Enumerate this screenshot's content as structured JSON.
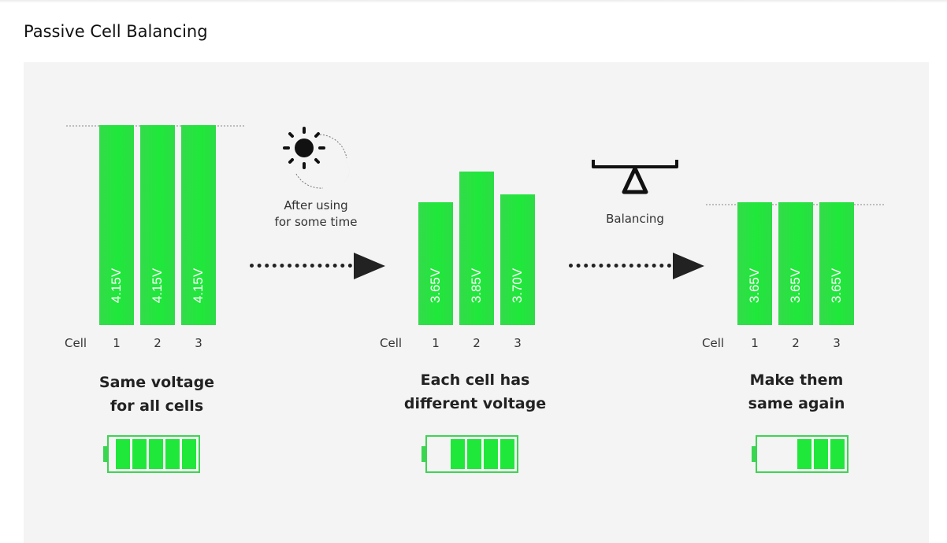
{
  "page": {
    "title": "Passive Cell Balancing"
  },
  "diagram": {
    "cell_axis_label": "Cell",
    "stages": [
      {
        "cells": [
          {
            "number": "1",
            "voltage": "4.15V",
            "value": 4.15
          },
          {
            "number": "2",
            "voltage": "4.15V",
            "value": 4.15
          },
          {
            "number": "3",
            "voltage": "4.15V",
            "value": 4.15
          }
        ],
        "caption_line1": "Same voltage",
        "caption_line2": "for all cells",
        "battery_segments_filled": 5,
        "battery_segments_total": 5
      },
      {
        "cells": [
          {
            "number": "1",
            "voltage": "3.65V",
            "value": 3.65
          },
          {
            "number": "2",
            "voltage": "3.85V",
            "value": 3.85
          },
          {
            "number": "3",
            "voltage": "3.70V",
            "value": 3.7
          }
        ],
        "caption_line1": "Each cell has",
        "caption_line2": "different voltage",
        "battery_segments_filled": 4,
        "battery_segments_total": 5
      },
      {
        "cells": [
          {
            "number": "1",
            "voltage": "3.65V",
            "value": 3.65
          },
          {
            "number": "2",
            "voltage": "3.65V",
            "value": 3.65
          },
          {
            "number": "3",
            "voltage": "3.65V",
            "value": 3.65
          }
        ],
        "caption_line1": "Make them",
        "caption_line2": "same again",
        "battery_segments_filled": 3,
        "battery_segments_total": 5
      }
    ],
    "transitions": [
      {
        "line1": "After using",
        "line2": "for some time",
        "icon": "sun-moon-icon"
      },
      {
        "line1": "Balancing",
        "line2": "",
        "icon": "scale-icon"
      }
    ],
    "colors": {
      "cell_green": "#1fe83a",
      "battery_outline": "#3ad650",
      "arrow": "#222222"
    }
  }
}
